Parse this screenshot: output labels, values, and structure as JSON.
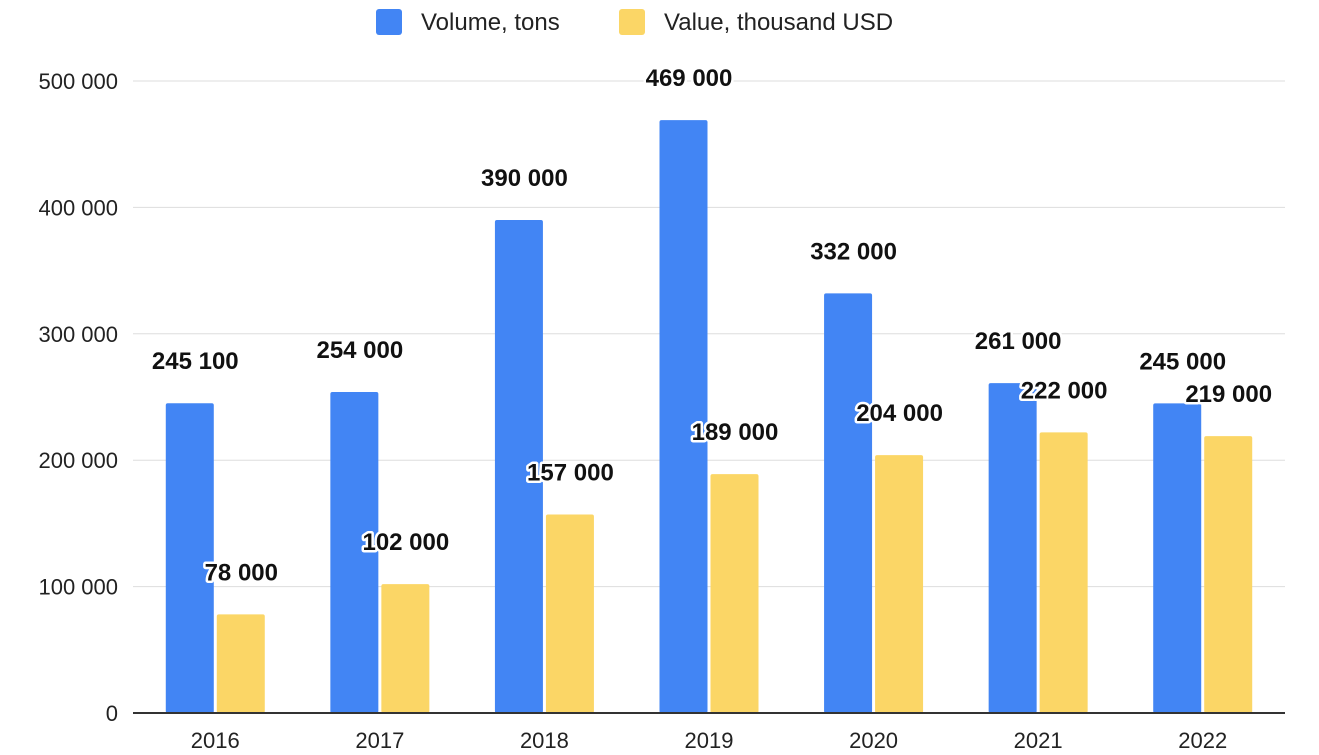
{
  "chart_data": {
    "type": "bar",
    "categories": [
      "2016",
      "2017",
      "2018",
      "2019",
      "2020",
      "2021",
      "2022"
    ],
    "series": [
      {
        "name": "Volume, tons",
        "color": "#4285f4",
        "values": [
          245100,
          254000,
          390000,
          469000,
          332000,
          261000,
          245000
        ],
        "labels": [
          "245 100",
          "254 000",
          "390 000",
          "469 000",
          "332 000",
          "261 000",
          "245 000"
        ]
      },
      {
        "name": "Value, thousand USD",
        "color": "#fbd666",
        "values": [
          78000,
          102000,
          157000,
          189000,
          204000,
          222000,
          219000
        ],
        "labels": [
          "78 000",
          "102 000",
          "157 000",
          "189 000",
          "204 000",
          "222 000",
          "219 000"
        ]
      }
    ],
    "ylim": [
      0,
      500000
    ],
    "yticks": [
      {
        "value": 0,
        "label": "0"
      },
      {
        "value": 100000,
        "label": "100 000"
      },
      {
        "value": 200000,
        "label": "200 000"
      },
      {
        "value": 300000,
        "label": "300 000"
      },
      {
        "value": 400000,
        "label": "400 000"
      },
      {
        "value": 500000,
        "label": "500 000"
      }
    ],
    "legend_position": "top-center",
    "grid": true,
    "gridline_color": "#dddddd",
    "axis_color": "#333333"
  }
}
